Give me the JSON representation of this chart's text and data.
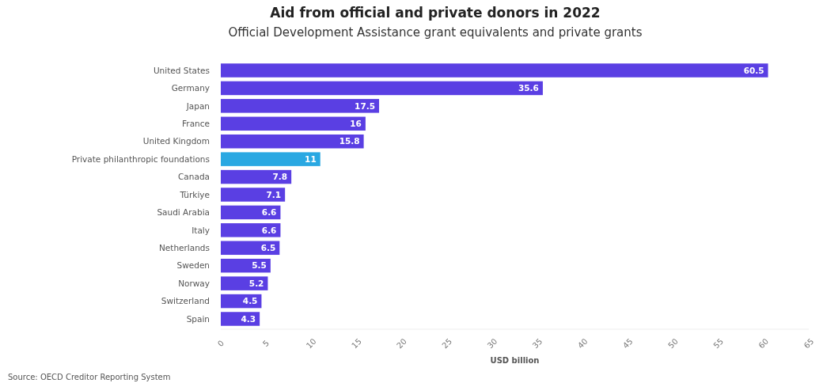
{
  "chart_data": {
    "type": "bar",
    "orientation": "horizontal",
    "title": "Aid from official and private donors in 2022",
    "subtitle": "Official Development Assistance grant equivalents and private grants",
    "xlabel": "USD billion",
    "categories": [
      "United States",
      "Germany",
      "Japan",
      "France",
      "United Kingdom",
      "Private philanthropic foundations",
      "Canada",
      "Türkiye",
      "Saudi Arabia",
      "Italy",
      "Netherlands",
      "Sweden",
      "Norway",
      "Switzerland",
      "Spain"
    ],
    "values": [
      60.5,
      35.6,
      17.5,
      16,
      15.8,
      11,
      7.8,
      7.1,
      6.6,
      6.6,
      6.5,
      5.5,
      5.2,
      4.5,
      4.3
    ],
    "colors": [
      "#5a3fe3",
      "#5a3fe3",
      "#5a3fe3",
      "#5a3fe3",
      "#5a3fe3",
      "#2aa8e2",
      "#5a3fe3",
      "#5a3fe3",
      "#5a3fe3",
      "#5a3fe3",
      "#5a3fe3",
      "#5a3fe3",
      "#5a3fe3",
      "#5a3fe3",
      "#5a3fe3"
    ],
    "xlim": [
      0,
      65
    ],
    "xticks": [
      0,
      5,
      10,
      15,
      20,
      25,
      30,
      35,
      40,
      45,
      50,
      55,
      60,
      65
    ],
    "data_labels": true,
    "grid": false,
    "annotations": [
      "Source: OECD Creditor Reporting System"
    ]
  }
}
